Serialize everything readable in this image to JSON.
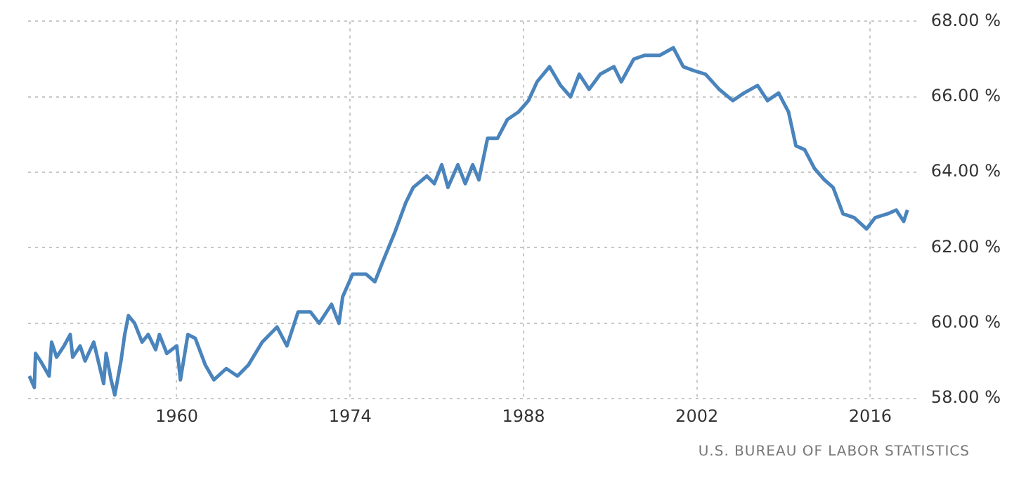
{
  "chart_data": {
    "type": "line",
    "x": [
      1948.1,
      1948.5,
      1948.6,
      1949,
      1949.7,
      1949.9,
      1950.3,
      1950.9,
      1951.4,
      1951.6,
      1952.2,
      1952.6,
      1953.3,
      1954.1,
      1954.3,
      1954.7,
      1955,
      1955.5,
      1955.8,
      1956.1,
      1956.6,
      1957.2,
      1957.7,
      1958.3,
      1958.6,
      1959.2,
      1960,
      1960.3,
      1960.9,
      1961.5,
      1962.3,
      1963,
      1964,
      1964.9,
      1965.8,
      1966.9,
      1968.1,
      1968.9,
      1969.8,
      1970.8,
      1971.5,
      1972.5,
      1973.1,
      1973.4,
      1974.2,
      1975.3,
      1976,
      1976.6,
      1977.6,
      1978.5,
      1979.1,
      1980.2,
      1980.8,
      1981.4,
      1981.9,
      1982.7,
      1983.3,
      1983.9,
      1984.4,
      1985.1,
      1985.9,
      1986.7,
      1987.6,
      1988.4,
      1989.1,
      1990.1,
      1991,
      1991.8,
      1992.5,
      1993.3,
      1994.2,
      1995.3,
      1995.9,
      1996.9,
      1997.8,
      1999,
      2000.1,
      2000.9,
      2001.7,
      2002.7,
      2003.8,
      2004.9,
      2005.8,
      2006.9,
      2007.7,
      2008.6,
      2009.4,
      2010,
      2010.7,
      2011.5,
      2012.3,
      2013,
      2013.8,
      2014.7,
      2015.7,
      2016.4,
      2017.4,
      2018.1,
      2018.7,
      2019
    ],
    "series": [
      {
        "color": "#4a84bc",
        "values": [
          58.6,
          58.3,
          59.2,
          59.0,
          58.6,
          59.5,
          59.1,
          59.4,
          59.7,
          59.1,
          59.4,
          59.0,
          59.5,
          58.4,
          59.2,
          58.5,
          58.1,
          59.0,
          59.7,
          60.2,
          60.0,
          59.5,
          59.7,
          59.3,
          59.7,
          59.2,
          59.4,
          58.5,
          59.7,
          59.6,
          58.9,
          58.5,
          58.8,
          58.6,
          58.9,
          59.5,
          59.9,
          59.4,
          60.3,
          60.3,
          60.0,
          60.5,
          60.0,
          60.7,
          61.3,
          61.3,
          61.1,
          61.6,
          62.4,
          63.2,
          63.6,
          63.9,
          63.7,
          64.2,
          63.6,
          64.2,
          63.7,
          64.2,
          63.8,
          64.9,
          64.9,
          65.4,
          65.6,
          65.9,
          66.4,
          66.8,
          66.3,
          66.0,
          66.6,
          66.2,
          66.6,
          66.8,
          66.4,
          67.0,
          67.1,
          67.1,
          67.3,
          66.8,
          66.7,
          66.6,
          66.2,
          65.9,
          66.1,
          66.3,
          65.9,
          66.1,
          65.6,
          64.7,
          64.6,
          64.1,
          63.8,
          63.6,
          62.9,
          62.8,
          62.5,
          62.8,
          62.9,
          63.0,
          62.7,
          63.0
        ]
      }
    ],
    "xlim": [
      1948,
      2020
    ],
    "xticks": [
      1960,
      1974,
      1988,
      2002,
      2016
    ],
    "ylim": [
      58,
      68
    ],
    "yticks": [
      {
        "value": 58,
        "label": "58.00 %"
      },
      {
        "value": 60,
        "label": "60.00 %"
      },
      {
        "value": 62,
        "label": "62.00 %"
      },
      {
        "value": 64,
        "label": "64.00 %"
      },
      {
        "value": 66,
        "label": "66.00 %"
      },
      {
        "value": 68,
        "label": "68.00 %"
      }
    ],
    "grid": true,
    "legend": false,
    "marker": "none",
    "line_style": "solid",
    "annotations": [
      "U.S. BUREAU OF LABOR STATISTICS"
    ]
  }
}
